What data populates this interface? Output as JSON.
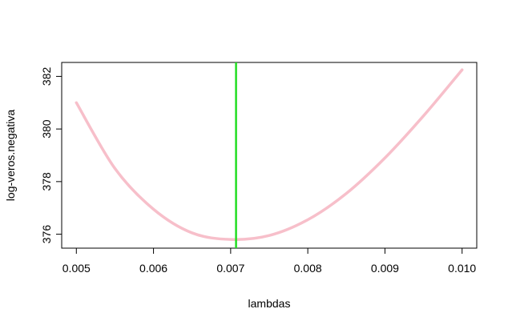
{
  "chart_data": {
    "type": "line",
    "title": "",
    "xlabel": "lambdas",
    "ylabel": "log-veros.negativa",
    "xlim": [
      0.00481,
      0.01019
    ],
    "ylim": [
      375.47,
      382.53
    ],
    "x_ticks": [
      0.005,
      0.006,
      0.007,
      0.008,
      0.009,
      0.01
    ],
    "x_tick_labels": [
      "0.005",
      "0.006",
      "0.007",
      "0.008",
      "0.009",
      "0.010"
    ],
    "y_ticks": [
      376,
      378,
      380,
      382
    ],
    "y_tick_labels": [
      "376",
      "378",
      "380",
      "382"
    ],
    "grid": false,
    "series": [
      {
        "color": "#f7bfca",
        "x": [
          0.005,
          0.0055,
          0.006,
          0.0065,
          0.007,
          0.0075,
          0.008,
          0.0085,
          0.009,
          0.0095,
          0.01
        ],
        "y": [
          381.0,
          378.5,
          376.95,
          376.05,
          375.8,
          375.95,
          376.55,
          377.55,
          378.9,
          380.5,
          382.25
        ]
      }
    ],
    "vline": {
      "x": 0.00707,
      "color": "#22dd22"
    }
  }
}
